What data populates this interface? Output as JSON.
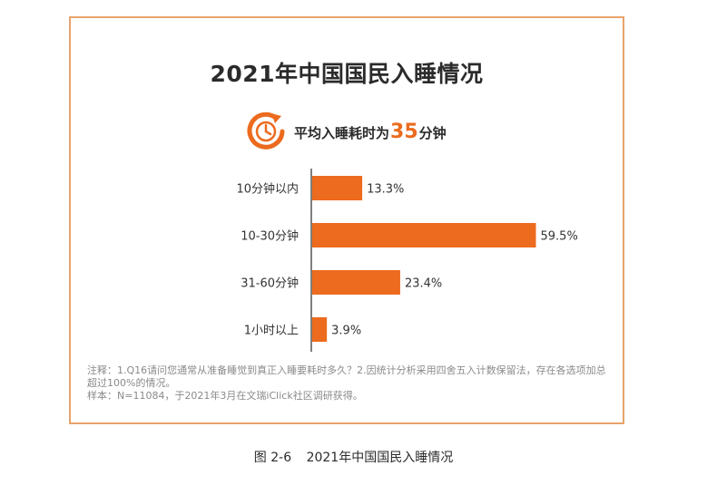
{
  "chart_data": {
    "type": "bar",
    "orientation": "horizontal",
    "title": "2021年中国国民入睡情况",
    "categories": [
      "10分钟以内",
      "10-30分钟",
      "31-60分钟",
      "1小时以上"
    ],
    "values": [
      13.3,
      59.5,
      23.4,
      3.9
    ],
    "value_labels": [
      "13.3%",
      "59.5%",
      "23.4%",
      "3.9%"
    ],
    "xlim": [
      0,
      70
    ],
    "grid": false,
    "bar_color": "#ec6b1e"
  },
  "summary": {
    "icon": "clock-icon",
    "prefix": "平均入睡耗时为",
    "number": "35",
    "suffix": "分钟"
  },
  "notes": {
    "line1": "注释：1.Q16请问您通常从准备睡觉到真正入睡要耗时多久？2.因统计分析采用四舍五入计数保留法，存在各选项加总超过100%的情况。",
    "line2": "样本：N=11084，于2021年3月在文瑞iClick社区调研获得。"
  },
  "caption": {
    "figure_no": "图 2-6",
    "text": "2021年中国国民入睡情况"
  },
  "colors": {
    "accent": "#ec6b1e",
    "frame_border": "#e8a36a"
  }
}
